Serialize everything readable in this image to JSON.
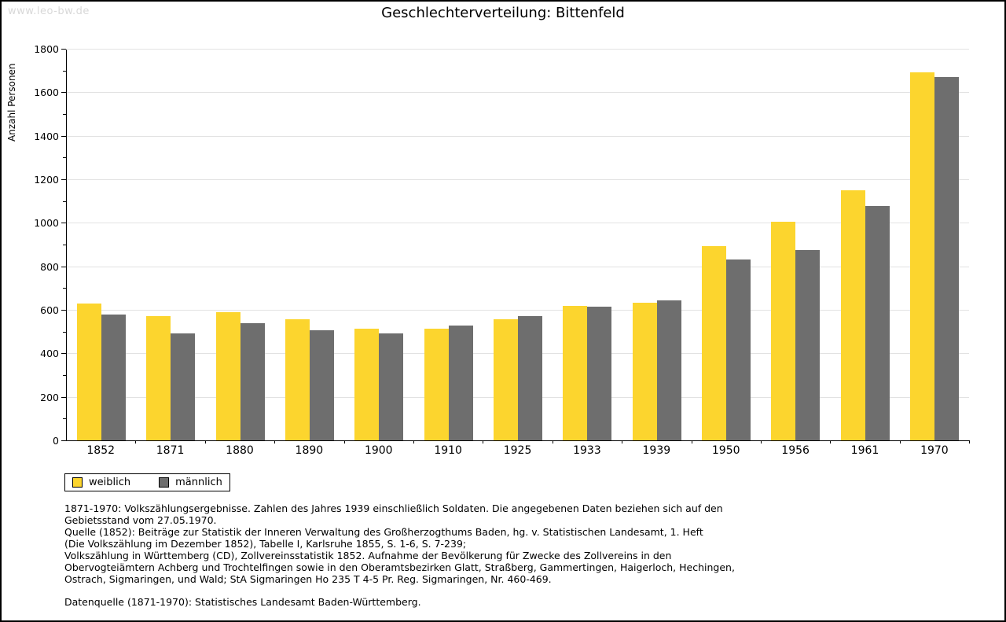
{
  "watermark": "www.leo-bw.de",
  "chart_data": {
    "type": "bar",
    "title": "Geschlechterverteilung: Bittenfeld",
    "xlabel": "",
    "ylabel": "Anzahl Personen",
    "ylim": [
      0,
      1800
    ],
    "ytick_step": 200,
    "ytick_labels": [
      "0",
      "200",
      "400",
      "600",
      "800",
      "1000",
      "1200",
      "1400",
      "1600",
      "1800"
    ],
    "minor_ticks_every": 100,
    "grid": "horizontal-major",
    "legend_position": "bottom-left",
    "categories": [
      "1852",
      "1871",
      "1880",
      "1890",
      "1900",
      "1910",
      "1925",
      "1933",
      "1939",
      "1950",
      "1956",
      "1961",
      "1970"
    ],
    "series": [
      {
        "name": "weiblich",
        "color": "#fcd52e",
        "values": [
          630,
          572,
          590,
          558,
          512,
          514,
          556,
          619,
          632,
          892,
          1004,
          1149,
          1690
        ]
      },
      {
        "name": "männlich",
        "color": "#6e6e6e",
        "values": [
          578,
          490,
          537,
          508,
          490,
          529,
          572,
          614,
          643,
          832,
          875,
          1078,
          1670
        ]
      }
    ]
  },
  "colors": {
    "grid": "#e2e2e2",
    "axis": "#000000",
    "watermark": "#d8d8d8",
    "background": "#ffffff"
  },
  "footnotes": {
    "block1_lines": [
      "1871-1970: Volkszählungsergebnisse. Zahlen des Jahres 1939 einschließlich Soldaten. Die angegebenen Daten beziehen sich auf den",
      "Gebietsstand vom 27.05.1970.",
      "Quelle (1852): Beiträge zur Statistik der Inneren Verwaltung des Großherzogthums Baden, hg. v. Statistischen Landesamt, 1. Heft",
      "(Die Volkszählung im Dezember 1852), Tabelle I, Karlsruhe 1855, S. 1-6, S. 7-239;",
      "Volkszählung in Württemberg (CD), Zollvereinsstatistik 1852. Aufnahme der Bevölkerung für Zwecke des Zollvereins in den",
      "Obervogteiämtern Achberg und Trochtelfingen sowie in den Oberamtsbezirken Glatt, Straßberg, Gammertingen, Haigerloch, Hechingen,",
      "Ostrach, Sigmaringen, und Wald; StA Sigmaringen Ho 235 T 4-5 Pr. Reg. Sigmaringen, Nr. 460-469."
    ],
    "block2_lines": [
      "Datenquelle (1871-1970): Statistisches Landesamt Baden-Württemberg."
    ]
  }
}
